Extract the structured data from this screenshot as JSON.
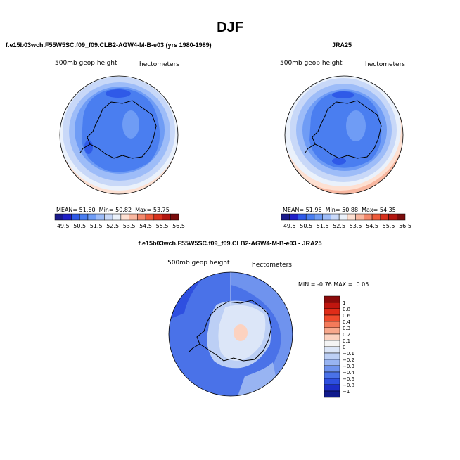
{
  "page_title": "DJF",
  "chart_data": [
    {
      "type": "heatmap",
      "title": "f.e15b03wch.F55W5SC.f09_f09.CLB2-AGW4-M-B-e03 (yrs 1980-1989)",
      "field_label": "500mb geop height",
      "units_label": "hectometers",
      "stats": {
        "mean_label": "MEAN=",
        "mean": "51.60",
        "min_label": "Min=",
        "min": "50.82",
        "max_label": "Max=",
        "max": "53.75"
      },
      "colorbar": {
        "levels": [
          "49.5",
          "50.5",
          "51.5",
          "52.5",
          "53.5",
          "54.5",
          "55.5",
          "56.5"
        ],
        "colors": [
          "#1a1a8c",
          "#2020c8",
          "#2f5ae8",
          "#4a7ef0",
          "#6f9cf5",
          "#9dbcf8",
          "#c8d8f8",
          "#eaf1fb",
          "#fde0d2",
          "#f8b7a0",
          "#f4876a",
          "#ee5a3a",
          "#d8311c",
          "#b31610",
          "#7a0c0c"
        ]
      }
    },
    {
      "type": "heatmap",
      "title": "JRA25",
      "field_label": "500mb geop height",
      "units_label": "hectometers",
      "stats": {
        "mean_label": "MEAN=",
        "mean": "51.96",
        "min_label": "Min=",
        "min": "50.88",
        "max_label": "Max=",
        "max": "54.35"
      },
      "colorbar": {
        "levels": [
          "49.5",
          "50.5",
          "51.5",
          "52.5",
          "53.5",
          "54.5",
          "55.5",
          "56.5"
        ],
        "colors": [
          "#1a1a8c",
          "#2020c8",
          "#2f5ae8",
          "#4a7ef0",
          "#6f9cf5",
          "#9dbcf8",
          "#c8d8f8",
          "#eaf1fb",
          "#fde0d2",
          "#f8b7a0",
          "#f4876a",
          "#ee5a3a",
          "#d8311c",
          "#b31610",
          "#7a0c0c"
        ]
      }
    },
    {
      "type": "heatmap",
      "title": "f.e15b03wch.F55W5SC.f09_f09.CLB2-AGW4-M-B-e03 - JRA25",
      "field_label": "500mb geop height",
      "units_label": "hectometers",
      "stats": {
        "min_label": "MIN =",
        "min": "-0.76",
        "max_label": "MAX =",
        "max": "0.05"
      },
      "colorbar": {
        "levels": [
          "1",
          "0.8",
          "0.6",
          "0.4",
          "0.3",
          "0.2",
          "0.1",
          "0",
          "−0.1",
          "−0.2",
          "−0.3",
          "−0.4",
          "−0.6",
          "−0.8",
          "−1"
        ],
        "colors": [
          "#8b0a0a",
          "#c0160f",
          "#e02c18",
          "#f04a2c",
          "#f47a5a",
          "#f8a88c",
          "#fcd2c0",
          "#f4f4f4",
          "#dce6f8",
          "#bccff5",
          "#98b4f2",
          "#6f93ee",
          "#4a72e8",
          "#2e4fe0",
          "#1d2ec8",
          "#101a8c"
        ]
      }
    }
  ]
}
